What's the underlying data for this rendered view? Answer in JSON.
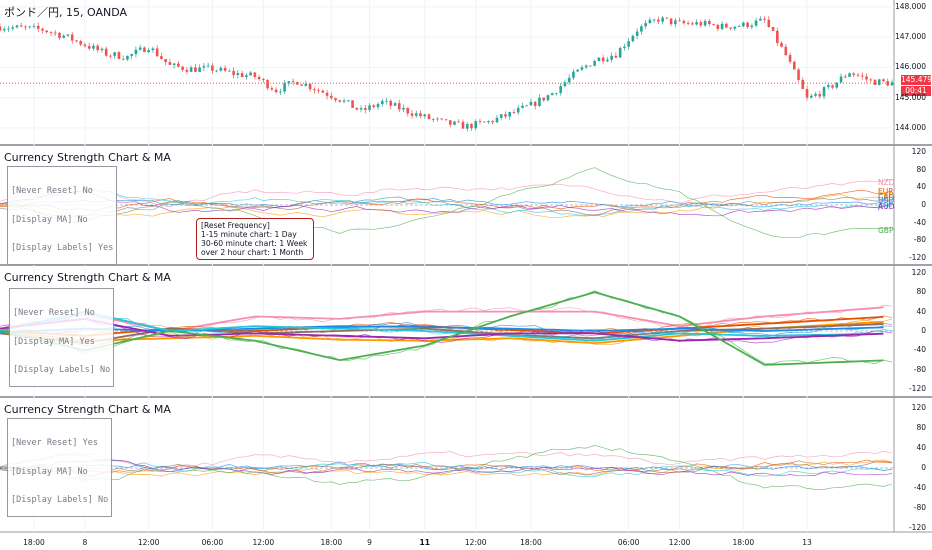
{
  "symbol_title": "ポンド／円, 15, OANDA",
  "colors": {
    "up": "#26a69a",
    "down": "#ef5350",
    "price_line": "#f23645",
    "NZD": "#f48fb1",
    "EUR": "#e65100",
    "CHF": "#ff9800",
    "CAD": "#8d6e63",
    "USD": "#1e88e5",
    "JPY": "#26c6da",
    "AUD": "#9c27b0",
    "GBP": "#4caf50"
  },
  "price_axis": {
    "ticks": [
      "148.000",
      "147.000",
      "146.000",
      "145.000",
      "144.000"
    ]
  },
  "price_tags": {
    "last": "145.479",
    "countdown": "00:41"
  },
  "x_axis": {
    "ticks": [
      "18:00",
      "8",
      "12:00",
      "06:00",
      "12:00",
      "18:00",
      "9",
      "11",
      "12:00",
      "18:00",
      "06:00",
      "12:00",
      "18:00",
      "13"
    ]
  },
  "panes": [
    {
      "title": "Currency Strength Chart & MA",
      "settings": [
        "[Never Reset] No",
        "[Display MA] No",
        "[Display Labels] Yes"
      ],
      "y_ticks": [
        "120",
        "80",
        "40",
        "0",
        "-40",
        "-80",
        "-120"
      ],
      "labels": [
        "NZD",
        "EUR",
        "CHF",
        "CAD",
        "USD",
        "JPY",
        "AUD",
        "GBP"
      ]
    },
    {
      "title": "Currency Strength Chart & MA",
      "settings": [
        "[Never Reset] No",
        "[Display MA] Yes",
        "[Display Labels] No"
      ],
      "y_ticks": [
        "120",
        "80",
        "40",
        "0",
        "-40",
        "-80",
        "-120"
      ]
    },
    {
      "title": "Currency Strength Chart & MA",
      "settings": [
        "[Never Reset] Yes",
        "[Display MA] No",
        "[Display Labels] No"
      ],
      "y_ticks": [
        "120",
        "80",
        "40",
        "0",
        "-40",
        "-80",
        "-120"
      ]
    }
  ],
  "tooltip": {
    "title": "[Reset Frequency]",
    "lines": [
      "1-15 minute chart: 1 Day",
      "30-60 minute chart: 1 Week",
      "over 2 hour chart: 1 Month"
    ]
  },
  "chart_data": [
    {
      "type": "candlestick",
      "title": "ポンド／円, 15, OANDA",
      "ylim": [
        143.6,
        148.1
      ],
      "last_price": 145.479,
      "close_path": [
        [
          0,
          147.35
        ],
        [
          5,
          147.3
        ],
        [
          10,
          147.25
        ],
        [
          15,
          147.05
        ],
        [
          20,
          146.75
        ],
        [
          25,
          146.45
        ],
        [
          30,
          146.35
        ],
        [
          35,
          146.7
        ],
        [
          40,
          146.05
        ],
        [
          45,
          145.95
        ],
        [
          50,
          145.95
        ],
        [
          55,
          145.8
        ],
        [
          60,
          145.7
        ],
        [
          65,
          145.25
        ],
        [
          70,
          145.55
        ],
        [
          75,
          145.25
        ],
        [
          80,
          144.95
        ],
        [
          85,
          144.55
        ],
        [
          90,
          144.85
        ],
        [
          95,
          144.6
        ],
        [
          100,
          144.35
        ],
        [
          105,
          144.15
        ],
        [
          110,
          144.05
        ],
        [
          115,
          144.2
        ],
        [
          120,
          144.45
        ],
        [
          125,
          144.75
        ],
        [
          130,
          145.15
        ],
        [
          135,
          145.75
        ],
        [
          140,
          146.25
        ],
        [
          145,
          146.45
        ],
        [
          150,
          147.25
        ],
        [
          155,
          147.6
        ],
        [
          160,
          147.45
        ],
        [
          165,
          147.45
        ],
        [
          170,
          147.35
        ],
        [
          175,
          147.4
        ],
        [
          180,
          147.55
        ],
        [
          185,
          146.4
        ],
        [
          190,
          144.95
        ],
        [
          195,
          145.3
        ],
        [
          200,
          145.85
        ],
        [
          205,
          145.55
        ],
        [
          210,
          145.479
        ]
      ]
    },
    {
      "type": "line",
      "title": "Currency Strength Chart & MA",
      "ylim": [
        -130,
        130
      ],
      "series": [
        {
          "name": "NZD",
          "anchors": [
            [
              0,
              5
            ],
            [
              20,
              35
            ],
            [
              40,
              0
            ],
            [
              60,
              30
            ],
            [
              80,
              25
            ],
            [
              100,
              40
            ],
            [
              120,
              40
            ],
            [
              140,
              40
            ],
            [
              160,
              10
            ],
            [
              180,
              30
            ],
            [
              210,
              50
            ]
          ]
        },
        {
          "name": "EUR",
          "anchors": [
            [
              0,
              0
            ],
            [
              20,
              -10
            ],
            [
              40,
              5
            ],
            [
              60,
              0
            ],
            [
              80,
              8
            ],
            [
              100,
              10
            ],
            [
              120,
              2
            ],
            [
              140,
              -5
            ],
            [
              160,
              5
            ],
            [
              180,
              15
            ],
            [
              210,
              30
            ]
          ]
        },
        {
          "name": "CHF",
          "anchors": [
            [
              0,
              0
            ],
            [
              20,
              -20
            ],
            [
              40,
              -15
            ],
            [
              60,
              -10
            ],
            [
              80,
              -18
            ],
            [
              100,
              -20
            ],
            [
              120,
              -15
            ],
            [
              140,
              -25
            ],
            [
              160,
              -10
            ],
            [
              180,
              5
            ],
            [
              210,
              20
            ]
          ]
        },
        {
          "name": "CAD",
          "anchors": [
            [
              0,
              -5
            ],
            [
              20,
              -25
            ],
            [
              40,
              5
            ],
            [
              60,
              -5
            ],
            [
              80,
              0
            ],
            [
              100,
              5
            ],
            [
              120,
              -8
            ],
            [
              140,
              -15
            ],
            [
              160,
              0
            ],
            [
              180,
              5
            ],
            [
              210,
              15
            ]
          ]
        },
        {
          "name": "USD",
          "anchors": [
            [
              0,
              -3
            ],
            [
              20,
              5
            ],
            [
              40,
              0
            ],
            [
              60,
              5
            ],
            [
              80,
              10
            ],
            [
              100,
              8
            ],
            [
              120,
              5
            ],
            [
              140,
              0
            ],
            [
              160,
              5
            ],
            [
              180,
              0
            ],
            [
              210,
              8
            ]
          ]
        },
        {
          "name": "JPY",
          "anchors": [
            [
              0,
              0
            ],
            [
              20,
              40
            ],
            [
              40,
              0
            ],
            [
              60,
              10
            ],
            [
              80,
              5
            ],
            [
              100,
              0
            ],
            [
              120,
              -10
            ],
            [
              140,
              -20
            ],
            [
              160,
              -5
            ],
            [
              180,
              -10
            ],
            [
              210,
              -5
            ]
          ]
        },
        {
          "name": "AUD",
          "anchors": [
            [
              0,
              5
            ],
            [
              20,
              25
            ],
            [
              40,
              -10
            ],
            [
              60,
              -5
            ],
            [
              80,
              -10
            ],
            [
              100,
              -15
            ],
            [
              120,
              -5
            ],
            [
              140,
              -5
            ],
            [
              160,
              -20
            ],
            [
              180,
              -15
            ],
            [
              210,
              -5
            ]
          ]
        },
        {
          "name": "GBP",
          "anchors": [
            [
              0,
              0
            ],
            [
              20,
              -40
            ],
            [
              40,
              0
            ],
            [
              60,
              -20
            ],
            [
              80,
              -60
            ],
            [
              100,
              -30
            ],
            [
              120,
              30
            ],
            [
              140,
              80
            ],
            [
              160,
              30
            ],
            [
              180,
              -70
            ],
            [
              210,
              -60
            ]
          ]
        }
      ]
    }
  ]
}
